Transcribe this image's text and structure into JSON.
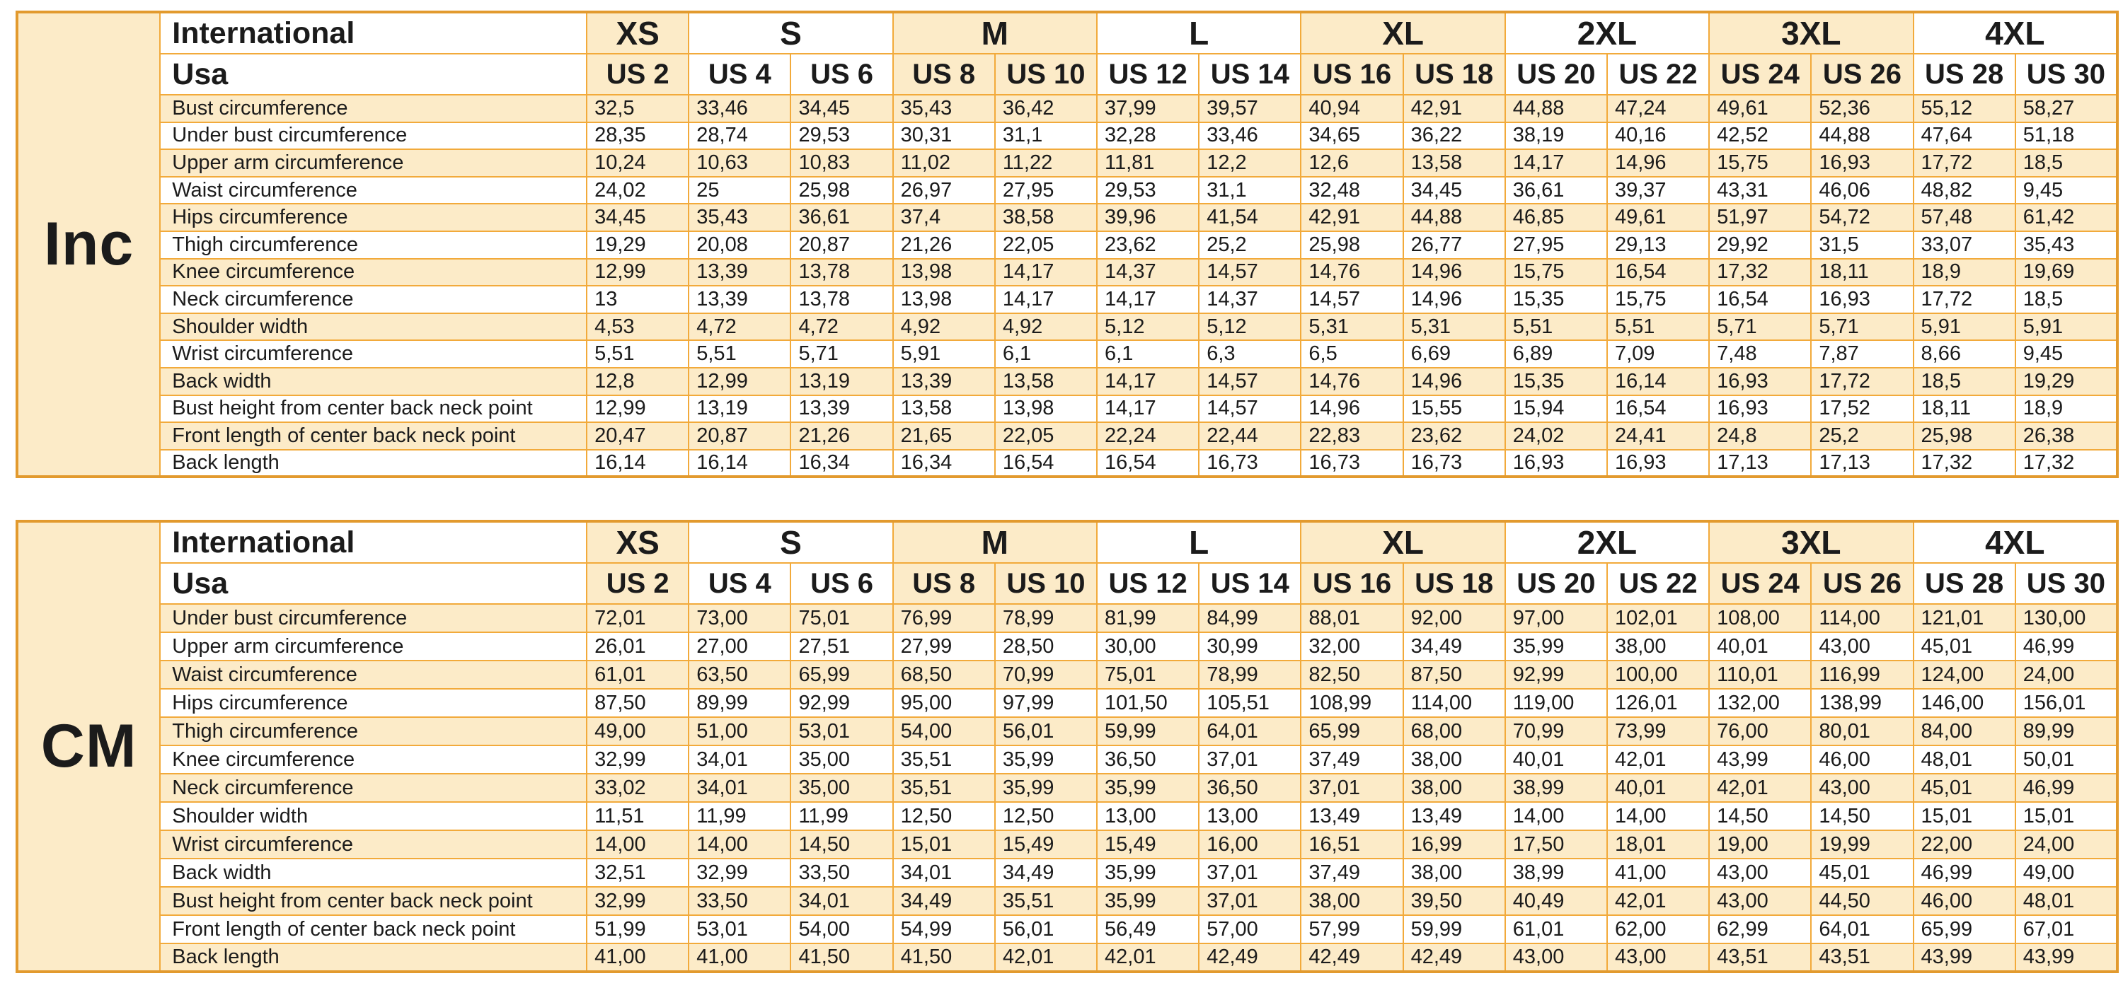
{
  "colors": {
    "outer_border": "#e29a2e",
    "grid_line": "#f2aa3b",
    "shaded_fill": "#fcebc8",
    "white_fill": "#ffffff",
    "text": "#1b1b1b"
  },
  "header": {
    "international_label": "International",
    "usa_label": "Usa",
    "size_groups": [
      {
        "label": "XS",
        "span": 1,
        "shaded": true
      },
      {
        "label": "S",
        "span": 2,
        "shaded": false
      },
      {
        "label": "M",
        "span": 2,
        "shaded": true
      },
      {
        "label": "L",
        "span": 2,
        "shaded": false
      },
      {
        "label": "XL",
        "span": 2,
        "shaded": true
      },
      {
        "label": "2XL",
        "span": 2,
        "shaded": false
      },
      {
        "label": "3XL",
        "span": 2,
        "shaded": true
      },
      {
        "label": "4XL",
        "span": 2,
        "shaded": false
      }
    ],
    "us_sizes": [
      "US 2",
      "US 4",
      "US 6",
      "US 8",
      "US 10",
      "US 12",
      "US 14",
      "US 16",
      "US 18",
      "US 20",
      "US 22",
      "US 24",
      "US 26",
      "US 28",
      "US 30"
    ]
  },
  "tables": [
    {
      "unit_label": "Inc",
      "rows": [
        {
          "label": "Bust circumference",
          "values": [
            "32,5",
            "33,46",
            "34,45",
            "35,43",
            "36,42",
            "37,99",
            "39,57",
            "40,94",
            "42,91",
            "44,88",
            "47,24",
            "49,61",
            "52,36",
            "55,12",
            "58,27"
          ]
        },
        {
          "label": "Under bust circumference",
          "values": [
            "28,35",
            "28,74",
            "29,53",
            "30,31",
            "31,1",
            "32,28",
            "33,46",
            "34,65",
            "36,22",
            "38,19",
            "40,16",
            "42,52",
            "44,88",
            "47,64",
            "51,18"
          ]
        },
        {
          "label": "Upper arm circumference",
          "values": [
            "10,24",
            "10,63",
            "10,83",
            "11,02",
            "11,22",
            "11,81",
            "12,2",
            "12,6",
            "13,58",
            "14,17",
            "14,96",
            "15,75",
            "16,93",
            "17,72",
            "18,5"
          ]
        },
        {
          "label": "Waist circumference",
          "values": [
            "24,02",
            "25",
            "25,98",
            "26,97",
            "27,95",
            "29,53",
            "31,1",
            "32,48",
            "34,45",
            "36,61",
            "39,37",
            "43,31",
            "46,06",
            "48,82",
            "9,45"
          ]
        },
        {
          "label": "Hips circumference",
          "values": [
            "34,45",
            "35,43",
            "36,61",
            "37,4",
            "38,58",
            "39,96",
            "41,54",
            "42,91",
            "44,88",
            "46,85",
            "49,61",
            "51,97",
            "54,72",
            "57,48",
            "61,42"
          ]
        },
        {
          "label": "Thigh circumference",
          "values": [
            "19,29",
            "20,08",
            "20,87",
            "21,26",
            "22,05",
            "23,62",
            "25,2",
            "25,98",
            "26,77",
            "27,95",
            "29,13",
            "29,92",
            "31,5",
            "33,07",
            "35,43"
          ]
        },
        {
          "label": "Knee circumference",
          "values": [
            "12,99",
            "13,39",
            "13,78",
            "13,98",
            "14,17",
            "14,37",
            "14,57",
            "14,76",
            "14,96",
            "15,75",
            "16,54",
            "17,32",
            "18,11",
            "18,9",
            "19,69"
          ]
        },
        {
          "label": "Neck circumference",
          "values": [
            "13",
            "13,39",
            "13,78",
            "13,98",
            "14,17",
            "14,17",
            "14,37",
            "14,57",
            "14,96",
            "15,35",
            "15,75",
            "16,54",
            "16,93",
            "17,72",
            "18,5"
          ]
        },
        {
          "label": "Shoulder width",
          "values": [
            "4,53",
            "4,72",
            "4,72",
            "4,92",
            "4,92",
            "5,12",
            "5,12",
            "5,31",
            "5,31",
            "5,51",
            "5,51",
            "5,71",
            "5,71",
            "5,91",
            "5,91"
          ]
        },
        {
          "label": "Wrist circumference",
          "values": [
            "5,51",
            "5,51",
            "5,71",
            "5,91",
            "6,1",
            "6,1",
            "6,3",
            "6,5",
            "6,69",
            "6,89",
            "7,09",
            "7,48",
            "7,87",
            "8,66",
            "9,45"
          ]
        },
        {
          "label": "Back width",
          "values": [
            "12,8",
            "12,99",
            "13,19",
            "13,39",
            "13,58",
            "14,17",
            "14,57",
            "14,76",
            "14,96",
            "15,35",
            "16,14",
            "16,93",
            "17,72",
            "18,5",
            "19,29"
          ]
        },
        {
          "label": "Bust height from center back neck point",
          "values": [
            "12,99",
            "13,19",
            "13,39",
            "13,58",
            "13,98",
            "14,17",
            "14,57",
            "14,96",
            "15,55",
            "15,94",
            "16,54",
            "16,93",
            "17,52",
            "18,11",
            "18,9"
          ]
        },
        {
          "label": "Front length of center back neck point",
          "values": [
            "20,47",
            "20,87",
            "21,26",
            "21,65",
            "22,05",
            "22,24",
            "22,44",
            "22,83",
            "23,62",
            "24,02",
            "24,41",
            "24,8",
            "25,2",
            "25,98",
            "26,38"
          ]
        },
        {
          "label": "Back length",
          "values": [
            "16,14",
            "16,14",
            "16,34",
            "16,34",
            "16,54",
            "16,54",
            "16,73",
            "16,73",
            "16,73",
            "16,93",
            "16,93",
            "17,13",
            "17,13",
            "17,32",
            "17,32"
          ]
        }
      ]
    },
    {
      "unit_label": "CM",
      "rows": [
        {
          "label": "Under bust circumference",
          "values": [
            "72,01",
            "73,00",
            "75,01",
            "76,99",
            "78,99",
            "81,99",
            "84,99",
            "88,01",
            "92,00",
            "97,00",
            "102,01",
            "108,00",
            "114,00",
            "121,01",
            "130,00"
          ]
        },
        {
          "label": "Upper arm circumference",
          "values": [
            "26,01",
            "27,00",
            "27,51",
            "27,99",
            "28,50",
            "30,00",
            "30,99",
            "32,00",
            "34,49",
            "35,99",
            "38,00",
            "40,01",
            "43,00",
            "45,01",
            "46,99"
          ]
        },
        {
          "label": "Waist circumference",
          "values": [
            "61,01",
            "63,50",
            "65,99",
            "68,50",
            "70,99",
            "75,01",
            "78,99",
            "82,50",
            "87,50",
            "92,99",
            "100,00",
            "110,01",
            "116,99",
            "124,00",
            "24,00"
          ]
        },
        {
          "label": "Hips circumference",
          "values": [
            "87,50",
            "89,99",
            "92,99",
            "95,00",
            "97,99",
            "101,50",
            "105,51",
            "108,99",
            "114,00",
            "119,00",
            "126,01",
            "132,00",
            "138,99",
            "146,00",
            "156,01"
          ]
        },
        {
          "label": "Thigh circumference",
          "values": [
            "49,00",
            "51,00",
            "53,01",
            "54,00",
            "56,01",
            "59,99",
            "64,01",
            "65,99",
            "68,00",
            "70,99",
            "73,99",
            "76,00",
            "80,01",
            "84,00",
            "89,99"
          ]
        },
        {
          "label": "Knee circumference",
          "values": [
            "32,99",
            "34,01",
            "35,00",
            "35,51",
            "35,99",
            "36,50",
            "37,01",
            "37,49",
            "38,00",
            "40,01",
            "42,01",
            "43,99",
            "46,00",
            "48,01",
            "50,01"
          ]
        },
        {
          "label": "Neck circumference",
          "values": [
            "33,02",
            "34,01",
            "35,00",
            "35,51",
            "35,99",
            "35,99",
            "36,50",
            "37,01",
            "38,00",
            "38,99",
            "40,01",
            "42,01",
            "43,00",
            "45,01",
            "46,99"
          ]
        },
        {
          "label": "Shoulder width",
          "values": [
            "11,51",
            "11,99",
            "11,99",
            "12,50",
            "12,50",
            "13,00",
            "13,00",
            "13,49",
            "13,49",
            "14,00",
            "14,00",
            "14,50",
            "14,50",
            "15,01",
            "15,01"
          ]
        },
        {
          "label": "Wrist circumference",
          "values": [
            "14,00",
            "14,00",
            "14,50",
            "15,01",
            "15,49",
            "15,49",
            "16,00",
            "16,51",
            "16,99",
            "17,50",
            "18,01",
            "19,00",
            "19,99",
            "22,00",
            "24,00"
          ]
        },
        {
          "label": "Back width",
          "values": [
            "32,51",
            "32,99",
            "33,50",
            "34,01",
            "34,49",
            "35,99",
            "37,01",
            "37,49",
            "38,00",
            "38,99",
            "41,00",
            "43,00",
            "45,01",
            "46,99",
            "49,00"
          ]
        },
        {
          "label": "Bust height from center back neck point",
          "values": [
            "32,99",
            "33,50",
            "34,01",
            "34,49",
            "35,51",
            "35,99",
            "37,01",
            "38,00",
            "39,50",
            "40,49",
            "42,01",
            "43,00",
            "44,50",
            "46,00",
            "48,01"
          ]
        },
        {
          "label": "Front length of center back neck point",
          "values": [
            "51,99",
            "53,01",
            "54,00",
            "54,99",
            "56,01",
            "56,49",
            "57,00",
            "57,99",
            "59,99",
            "61,01",
            "62,00",
            "62,99",
            "64,01",
            "65,99",
            "67,01"
          ]
        },
        {
          "label": "Back length",
          "values": [
            "41,00",
            "41,00",
            "41,50",
            "41,50",
            "42,01",
            "42,01",
            "42,49",
            "42,49",
            "42,49",
            "43,00",
            "43,00",
            "43,51",
            "43,51",
            "43,99",
            "43,99"
          ]
        }
      ]
    }
  ]
}
